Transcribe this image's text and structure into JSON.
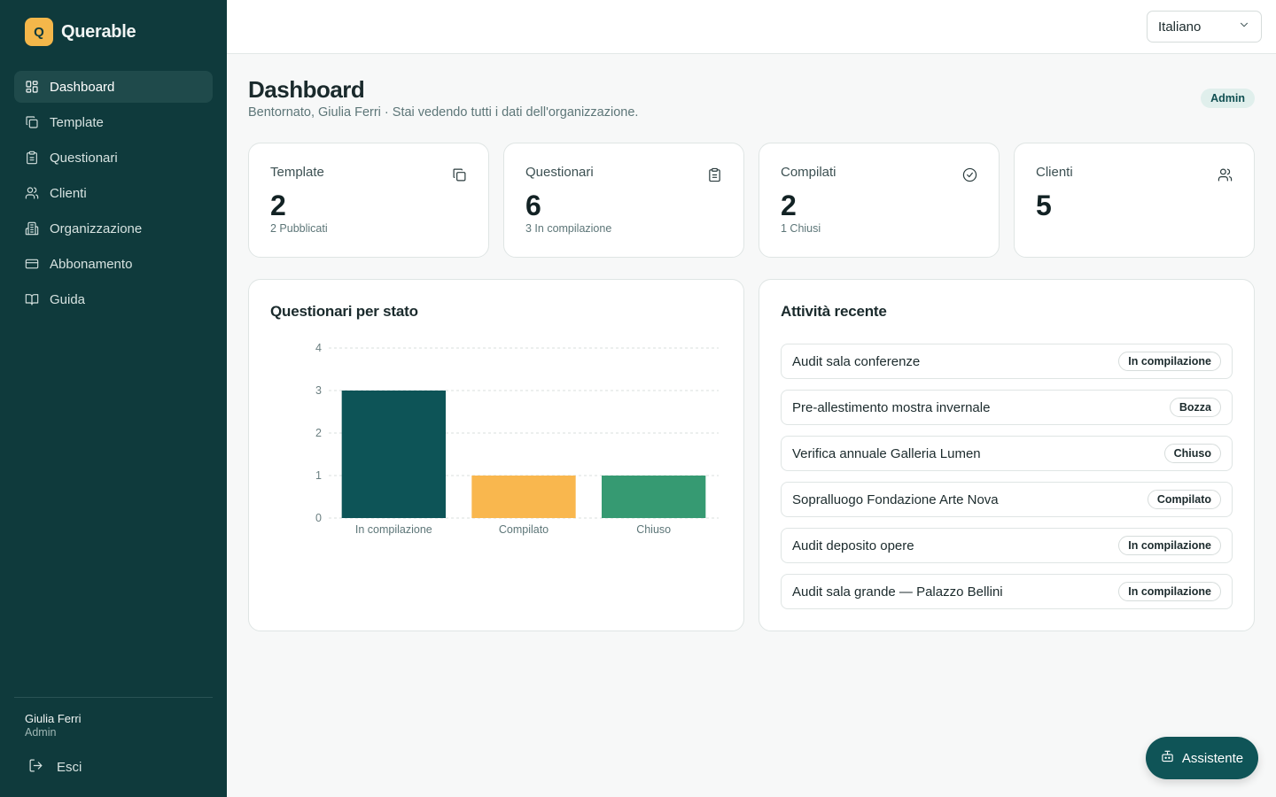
{
  "brand": {
    "logo_letter": "Q",
    "name": "Querable"
  },
  "nav": {
    "items": [
      {
        "label": "Dashboard",
        "icon": "layout-grid-icon",
        "active": true
      },
      {
        "label": "Template",
        "icon": "copy-icon",
        "active": false
      },
      {
        "label": "Questionari",
        "icon": "clipboard-icon",
        "active": false
      },
      {
        "label": "Clienti",
        "icon": "users-icon",
        "active": false
      },
      {
        "label": "Organizzazione",
        "icon": "building-icon",
        "active": false
      },
      {
        "label": "Abbonamento",
        "icon": "credit-card-icon",
        "active": false
      },
      {
        "label": "Guida",
        "icon": "book-icon",
        "active": false
      }
    ]
  },
  "user": {
    "name": "Giulia Ferri",
    "role": "Admin",
    "logout_label": "Esci"
  },
  "topbar": {
    "language": "Italiano"
  },
  "header": {
    "title": "Dashboard",
    "subtitle": "Bentornato, Giulia Ferri · Stai vedendo tutti i dati dell'organizzazione.",
    "role_badge": "Admin"
  },
  "stats": [
    {
      "label": "Template",
      "value": "2",
      "sub": "2 Pubblicati",
      "icon": "copy-icon"
    },
    {
      "label": "Questionari",
      "value": "6",
      "sub": "3 In compilazione",
      "icon": "clipboard-icon"
    },
    {
      "label": "Compilati",
      "value": "2",
      "sub": "1 Chiusi",
      "icon": "check-circle-icon"
    },
    {
      "label": "Clienti",
      "value": "5",
      "sub": "",
      "icon": "users-icon"
    }
  ],
  "chart_panel": {
    "title": "Questionari per stato"
  },
  "chart_data": {
    "type": "bar",
    "title": "Questionari per stato",
    "categories": [
      "In compilazione",
      "Compilato",
      "Chiuso"
    ],
    "values": [
      3,
      1,
      1
    ],
    "colors": [
      "#0d5457",
      "#f9b74e",
      "#369a72"
    ],
    "ylim": [
      0,
      4
    ],
    "yticks": [
      0,
      1,
      2,
      3,
      4
    ],
    "grid": true,
    "xlabel": "",
    "ylabel": ""
  },
  "activity": {
    "title": "Attività recente",
    "items": [
      {
        "name": "Audit sala conferenze",
        "status": "In compilazione"
      },
      {
        "name": "Pre-allestimento mostra invernale",
        "status": "Bozza"
      },
      {
        "name": "Verifica annuale Galleria Lumen",
        "status": "Chiuso"
      },
      {
        "name": "Sopralluogo Fondazione Arte Nova",
        "status": "Compilato"
      },
      {
        "name": "Audit deposito opere",
        "status": "In compilazione"
      },
      {
        "name": "Audit sala grande — Palazzo Bellini",
        "status": "In compilazione"
      }
    ]
  },
  "assistant": {
    "label": "Assistente",
    "icon": "bot-icon"
  }
}
